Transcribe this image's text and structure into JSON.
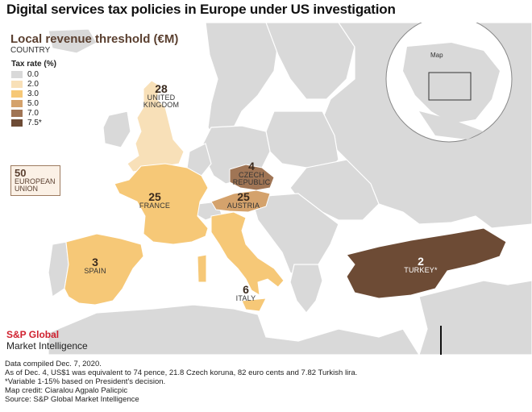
{
  "title": "Digital services tax policies in Europe under US investigation",
  "legend": {
    "title": "Local revenue threshold (€M)",
    "subtitle": "COUNTRY",
    "tax_rate_title": "Tax rate (%)",
    "items": [
      {
        "label": "0.0",
        "color": "#d9d9d9"
      },
      {
        "label": "2.0",
        "color": "#f8e0b8"
      },
      {
        "label": "3.0",
        "color": "#f6c877"
      },
      {
        "label": "5.0",
        "color": "#d4a26c"
      },
      {
        "label": "7.0",
        "color": "#a07555"
      },
      {
        "label": "7.5*",
        "color": "#6d4b35"
      }
    ]
  },
  "eu": {
    "number": "50",
    "label_line1": "EUROPEAN",
    "label_line2": "UNION"
  },
  "countries": {
    "uk": {
      "number": "28",
      "label_line1": "UNITED",
      "label_line2": "KINGDOM"
    },
    "france": {
      "number": "25",
      "label": "FRANCE"
    },
    "spain": {
      "number": "3",
      "label": "SPAIN"
    },
    "czech": {
      "number": "4",
      "label_line1": "CZECH",
      "label_line2": "REPUBLIC"
    },
    "austria": {
      "number": "25",
      "label": "AUSTRIA"
    },
    "italy": {
      "number": "6",
      "label": "ITALY"
    },
    "turkey": {
      "number": "2",
      "label": "TURKEY*"
    }
  },
  "inset": {
    "label": "Map"
  },
  "brand": {
    "line1": "S&P Global",
    "line2": "Market Intelligence"
  },
  "notes": [
    "Data compiled Dec. 7, 2020.",
    "As of Dec. 4, US$1 was equivalent to 74 pence, 21.8 Czech koruna, 82 euro cents and 7.82 Turkish lira.",
    "*Variable 1-15% based on President's decision.",
    "Map credit: Ciaralou Agpalo Palicpic",
    "Source: S&P Global Market Intelligence"
  ]
}
